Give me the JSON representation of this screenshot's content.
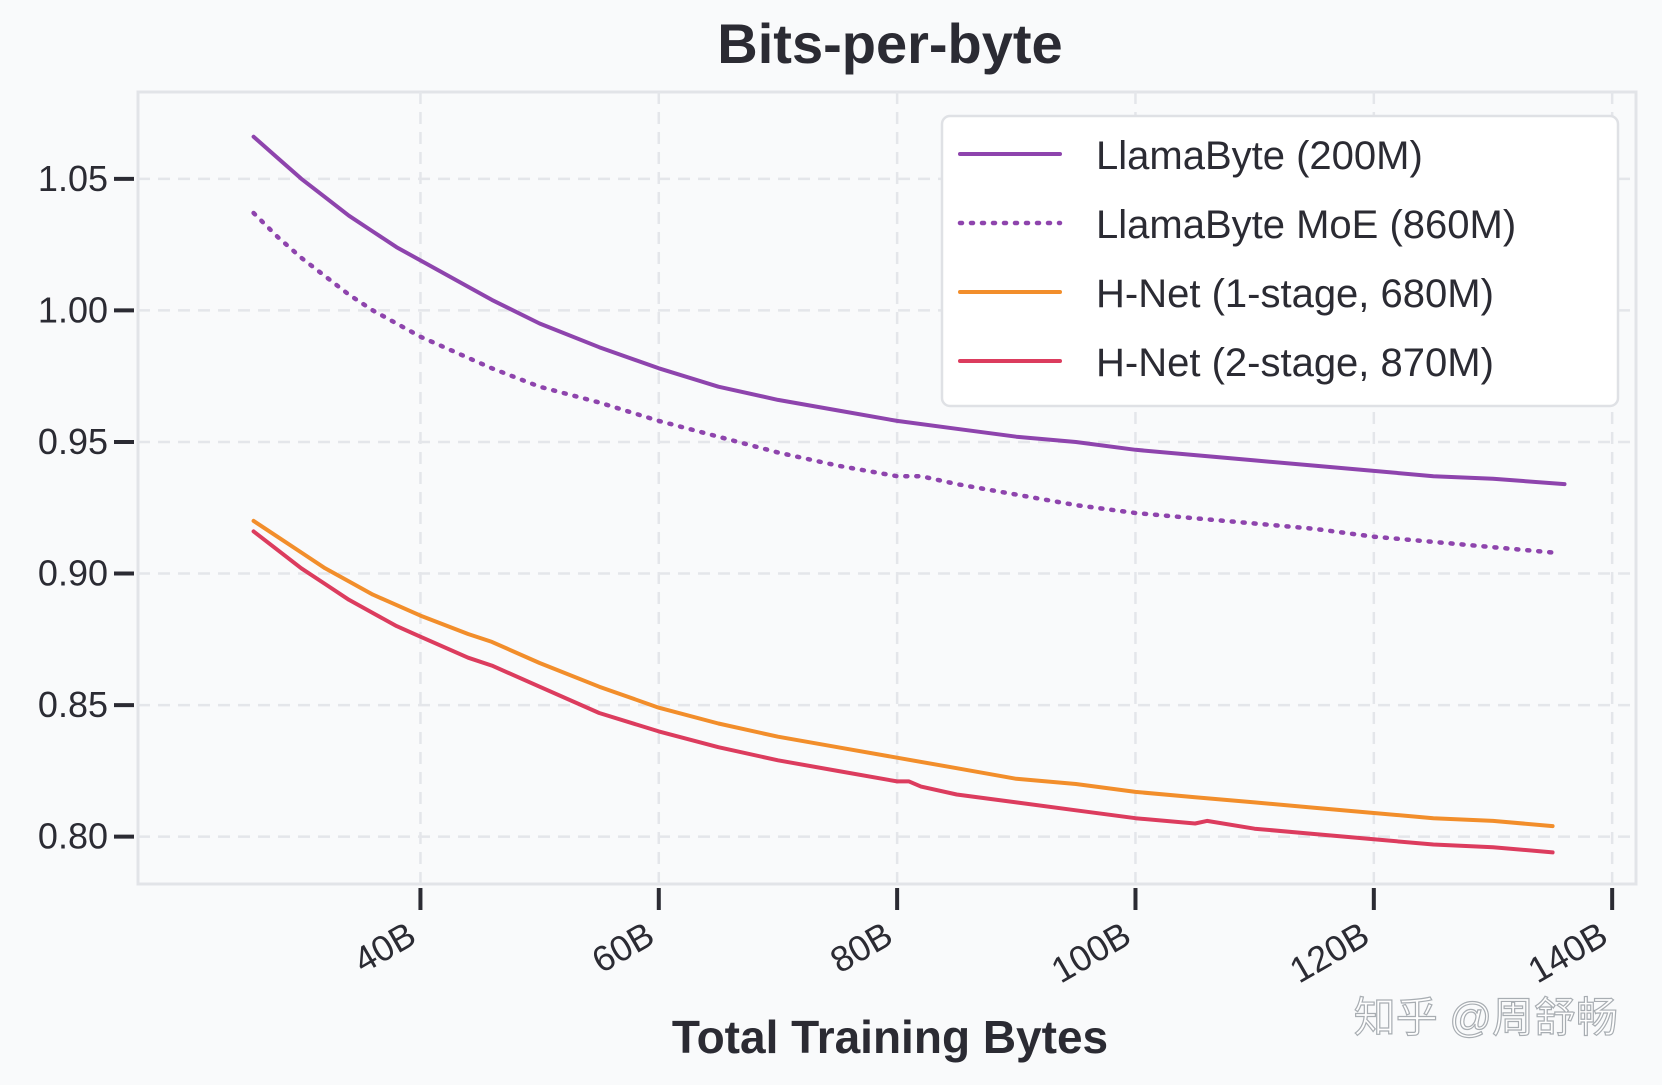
{
  "chart_data": {
    "type": "line",
    "title": "Bits-per-byte",
    "xlabel": "Total Training Bytes",
    "ylabel": "",
    "xlim": [
      16.3,
      142
    ],
    "ylim": [
      0.782,
      1.083
    ],
    "xticks": [
      40,
      60,
      80,
      100,
      120,
      140
    ],
    "xtick_labels": [
      "40B",
      "60B",
      "80B",
      "100B",
      "120B",
      "140B"
    ],
    "yticks": [
      0.8,
      0.85,
      0.9,
      0.95,
      1.0,
      1.05
    ],
    "ytick_labels": [
      "0.80",
      "0.85",
      "0.90",
      "0.95",
      "1.00",
      "1.05"
    ],
    "grid": true,
    "legend_position": "top-right",
    "series": [
      {
        "name": "LlamaByte (200M)",
        "color": "#8e44ad",
        "style": "solid",
        "x": [
          26,
          28,
          30,
          32,
          34,
          36,
          38,
          40,
          44,
          46,
          50,
          55,
          60,
          65,
          70,
          75,
          80,
          85,
          90,
          95,
          100,
          105,
          110,
          115,
          120,
          125,
          130,
          136
        ],
        "y": [
          1.066,
          1.058,
          1.05,
          1.043,
          1.036,
          1.03,
          1.024,
          1.019,
          1.009,
          1.004,
          0.995,
          0.986,
          0.978,
          0.971,
          0.966,
          0.962,
          0.958,
          0.955,
          0.952,
          0.95,
          0.947,
          0.945,
          0.943,
          0.941,
          0.939,
          0.937,
          0.936,
          0.934
        ]
      },
      {
        "name": "LlamaByte MoE (860M)",
        "color": "#8e44ad",
        "style": "dotted",
        "x": [
          26,
          28,
          30,
          32,
          34,
          36,
          38,
          40,
          44,
          46,
          50,
          55,
          60,
          65,
          70,
          75,
          80,
          82,
          85,
          90,
          95,
          100,
          105,
          110,
          115,
          120,
          125,
          130,
          135
        ],
        "y": [
          1.037,
          1.028,
          1.02,
          1.013,
          1.006,
          1.0,
          0.995,
          0.99,
          0.982,
          0.978,
          0.971,
          0.965,
          0.958,
          0.952,
          0.946,
          0.941,
          0.937,
          0.937,
          0.934,
          0.93,
          0.926,
          0.923,
          0.921,
          0.919,
          0.917,
          0.914,
          0.912,
          0.91,
          0.908
        ]
      },
      {
        "name": "H-Net (1-stage, 680M)",
        "color": "#f28e2b",
        "style": "solid",
        "x": [
          26,
          28,
          30,
          32,
          34,
          36,
          38,
          40,
          44,
          46,
          50,
          55,
          60,
          65,
          70,
          75,
          80,
          85,
          90,
          95,
          100,
          105,
          110,
          115,
          120,
          125,
          130,
          135
        ],
        "y": [
          0.92,
          0.914,
          0.908,
          0.902,
          0.897,
          0.892,
          0.888,
          0.884,
          0.877,
          0.874,
          0.866,
          0.857,
          0.849,
          0.843,
          0.838,
          0.834,
          0.83,
          0.826,
          0.822,
          0.82,
          0.817,
          0.815,
          0.813,
          0.811,
          0.809,
          0.807,
          0.806,
          0.804
        ]
      },
      {
        "name": "H-Net (2-stage, 870M)",
        "color": "#dc3c5e",
        "style": "solid",
        "x": [
          26,
          28,
          30,
          32,
          34,
          36,
          38,
          40,
          44,
          46,
          50,
          55,
          60,
          65,
          70,
          75,
          80,
          81,
          82,
          85,
          90,
          95,
          100,
          105,
          106,
          110,
          115,
          120,
          125,
          130,
          135
        ],
        "y": [
          0.916,
          0.909,
          0.902,
          0.896,
          0.89,
          0.885,
          0.88,
          0.876,
          0.868,
          0.865,
          0.857,
          0.847,
          0.84,
          0.834,
          0.829,
          0.825,
          0.821,
          0.821,
          0.819,
          0.816,
          0.813,
          0.81,
          0.807,
          0.805,
          0.806,
          0.803,
          0.801,
          0.799,
          0.797,
          0.796,
          0.794
        ]
      }
    ]
  },
  "watermark": {
    "text": "知乎 @周舒畅"
  }
}
